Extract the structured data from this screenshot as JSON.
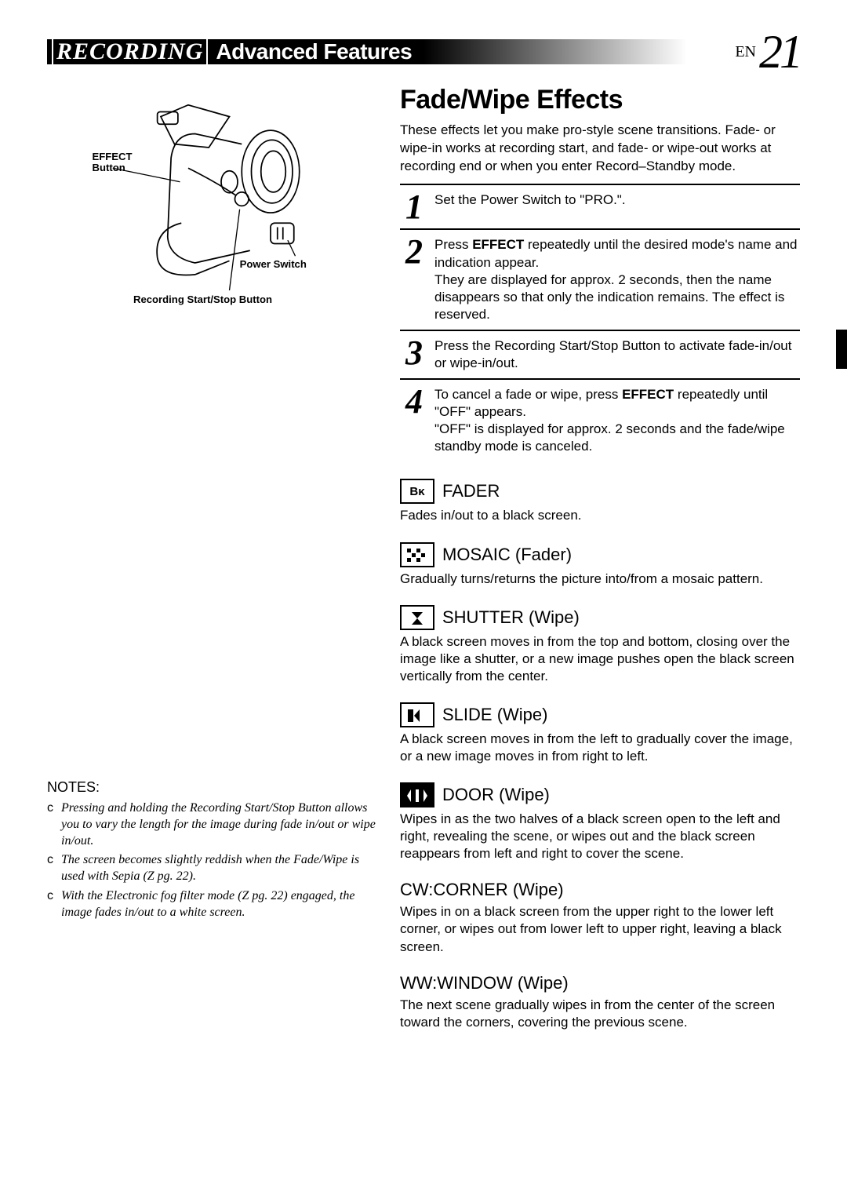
{
  "header": {
    "title1": "RECORDING",
    "title2": "Advanced Features",
    "page_lang": "EN",
    "page_num": "21"
  },
  "diagram": {
    "label_effect": "EFFECT Button",
    "label_power": "Power Switch",
    "label_recbtn": "Recording Start/Stop Button"
  },
  "section": {
    "title": "Fade/Wipe Effects",
    "intro": "These effects let you make pro-style scene transitions. Fade- or wipe-in works at recording start, and fade- or wipe-out works at recording end or when you enter Record–Standby mode."
  },
  "steps": [
    {
      "n": "1",
      "body": "Set the Power Switch to \"PRO.\"."
    },
    {
      "n": "2",
      "body": "Press <b>EFFECT</b> repeatedly until the desired mode's name and indication appear.<br>They are displayed for approx. 2 seconds, then the name disappears so that only the indication remains. The effect is reserved."
    },
    {
      "n": "3",
      "body": "Press the Recording Start/Stop Button to activate fade-in/out or wipe-in/out."
    },
    {
      "n": "4",
      "body": "To cancel a fade or wipe, press <b>EFFECT</b> repeatedly until \"OFF\" appears.<br>\"OFF\" is displayed for approx. 2 seconds and the fade/wipe standby mode is canceled."
    }
  ],
  "effects": [
    {
      "icon_type": "text",
      "icon_text": "Bᴋ",
      "inv": false,
      "name": "FADER",
      "desc": "Fades in/out to a black screen."
    },
    {
      "icon_type": "mosaic",
      "inv": false,
      "name": "MOSAIC (Fader)",
      "desc": "Gradually turns/returns the picture into/from a mosaic pattern."
    },
    {
      "icon_type": "shutter",
      "inv": false,
      "name": "SHUTTER (Wipe)",
      "desc": "A black screen moves in from the top and bottom, closing over the image like a shutter, or a new image pushes open the black screen vertically from the center."
    },
    {
      "icon_type": "slide",
      "inv": false,
      "name": "SLIDE (Wipe)",
      "desc": "A black screen moves in from the left to gradually cover the image, or a new image moves in from right to left."
    },
    {
      "icon_type": "door",
      "inv": true,
      "name": "DOOR (Wipe)",
      "desc": "Wipes in as the two halves of a black screen open to the left and right, revealing the scene, or wipes out and the black screen reappears from left and right to cover the scene."
    },
    {
      "icon_type": "none",
      "prefix": "CW:",
      "name": "CORNER (Wipe)",
      "desc": "Wipes in on a black screen from the upper right to the lower left corner, or wipes out from lower left to upper right, leaving a black screen."
    },
    {
      "icon_type": "none",
      "prefix": "WW:",
      "name": "WINDOW (Wipe)",
      "desc": "The next scene gradually wipes in from the center of the screen toward the corners, covering the previous scene."
    }
  ],
  "notes": {
    "heading": "NOTES:",
    "bullet": "c",
    "items": [
      "Pressing and holding the Recording Start/Stop Button allows you to vary the length for the image during fade in/out or wipe in/out.",
      "The screen becomes slightly reddish when the Fade/Wipe is used with Sepia (Z  pg. 22).",
      "With the Electronic fog filter mode (Z  pg. 22) engaged, the image fades in/out to a white screen."
    ]
  },
  "colors": {
    "text": "#000000",
    "bg": "#ffffff"
  }
}
